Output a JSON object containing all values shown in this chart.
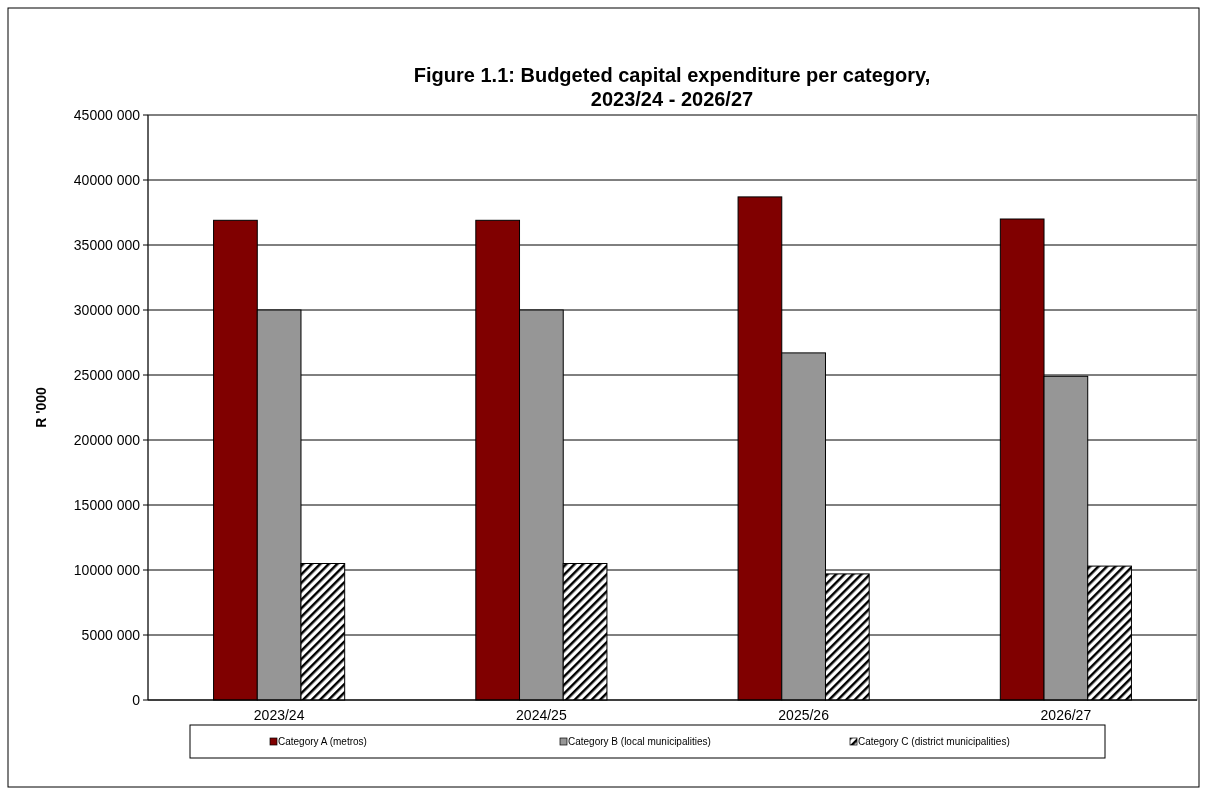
{
  "chart_data": {
    "type": "bar",
    "title": "Figure 1.1: Budgeted capital expenditure per category,\n2023/24 - 2026/27",
    "ylabel": "R '000",
    "categories": [
      "2023/24",
      "2024/25",
      "2025/26",
      "2026/27"
    ],
    "series": [
      {
        "name": "Category A (metros)",
        "color": "#800000",
        "values": [
          36900000,
          36900000,
          38700000,
          37000000
        ]
      },
      {
        "name": "Category B (local municipalities)",
        "color": "#969696",
        "values": [
          30000000,
          30000000,
          26700000,
          24900000
        ]
      },
      {
        "name": "Category C (district municipalities)",
        "color": "#000000",
        "values": [
          10500000,
          10500000,
          9700000,
          10300000
        ]
      }
    ],
    "ylim": [
      0,
      45000000
    ],
    "yticks": [
      {
        "value": 0,
        "label": "0"
      },
      {
        "value": 5000000,
        "label": "5000 000"
      },
      {
        "value": 10000000,
        "label": "10000 000"
      },
      {
        "value": 15000000,
        "label": "15000 000"
      },
      {
        "value": 20000000,
        "label": "20000 000"
      },
      {
        "value": 25000000,
        "label": "25000 000"
      },
      {
        "value": 30000000,
        "label": "30000 000"
      },
      {
        "value": 35000000,
        "label": "35000 000"
      },
      {
        "value": 40000000,
        "label": "40000 000"
      },
      {
        "value": 45000000,
        "label": "45000 000"
      }
    ],
    "grid": "y",
    "legend": "bottom"
  }
}
